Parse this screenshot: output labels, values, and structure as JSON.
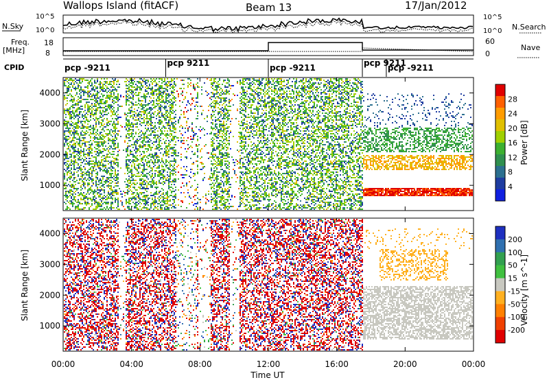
{
  "header": {
    "station": "Wallops Island (fitACF)",
    "beam": "Beam 13",
    "date": "17/Jan/2012"
  },
  "noise_panel": {
    "left_label": "N.Sky",
    "right_label": "N.Search",
    "ticks_left": [
      "10^5",
      "10^0"
    ],
    "ticks_right": [
      "10^5",
      "10^0"
    ]
  },
  "freq_panel": {
    "left_label_line1": "Freq.",
    "left_label_line2": "[MHz]",
    "right_label": "Nave",
    "ticks_left": [
      "18",
      "8"
    ],
    "ticks_right": [
      "60",
      "0"
    ]
  },
  "cpid": {
    "label": "CPID",
    "segments": [
      {
        "label": "pcp -9211",
        "start_hour": 0.0
      },
      {
        "label": "pcp 9211",
        "start_hour": 6.0
      },
      {
        "label": "pcp -9211",
        "start_hour": 12.0
      },
      {
        "label": "pcp 9211",
        "start_hour": 17.5
      },
      {
        "label": "pcp -9211",
        "start_hour": 18.9
      }
    ]
  },
  "x_axis": {
    "label": "Time UT",
    "ticks": [
      "00:00",
      "04:00",
      "08:00",
      "12:00",
      "16:00",
      "20:00",
      "00:00"
    ]
  },
  "chart_data": [
    {
      "type": "heatmap",
      "title": "",
      "xlabel": "Time UT",
      "ylabel": "Slant Range [km]",
      "xlim": [
        0,
        24
      ],
      "ylim": [
        180,
        4500
      ],
      "yticks": [
        1000,
        2000,
        3000,
        4000
      ],
      "colorbar": {
        "label": "Power [dB]",
        "ticks": [
          "28",
          "24",
          "20",
          "16",
          "12",
          "8",
          "4"
        ],
        "colors": [
          "#e00000",
          "#ff6000",
          "#ff9c00",
          "#e0c000",
          "#a0d000",
          "#3cb030",
          "#2f8f4f",
          "#2b6f8f",
          "#1e3ca0",
          "#1020e0"
        ]
      },
      "features": [
        {
          "name": "scatter band",
          "time_start": 17.5,
          "time_end": 24.0,
          "range_km": [
            700,
            900
          ],
          "power_db": 28
        },
        {
          "name": "scatter band",
          "time_start": 17.5,
          "time_end": 23.5,
          "range_km": [
            1500,
            2000
          ],
          "power_db": 20
        },
        {
          "name": "scatter band",
          "time_start": 17.5,
          "time_end": 23.0,
          "range_km": [
            2200,
            2800
          ],
          "power_db": 12
        }
      ]
    },
    {
      "type": "heatmap",
      "title": "",
      "xlabel": "Time UT",
      "ylabel": "Slant Range [km]",
      "xlim": [
        0,
        24
      ],
      "ylim": [
        180,
        4500
      ],
      "yticks": [
        1000,
        2000,
        3000,
        4000
      ],
      "colorbar": {
        "label": "Velocity [m s^-1]",
        "ticks": [
          "200",
          "100",
          "50",
          "15",
          "-15",
          "-50",
          "-100",
          "-200"
        ],
        "colors": [
          "#1e30c0",
          "#2f70b0",
          "#32a050",
          "#40c040",
          "#c8c8c0",
          "#ffb020",
          "#ff8000",
          "#f04000",
          "#e00000"
        ]
      },
      "features": [
        {
          "name": "ground scatter",
          "time_start": 17.5,
          "time_end": 24.0,
          "range_km": [
            600,
            2200
          ],
          "velocity": 0
        },
        {
          "name": "ionospheric scatter",
          "time_start": 18.5,
          "time_end": 22.5,
          "range_km": [
            2500,
            3500
          ],
          "velocity": -50
        }
      ]
    }
  ]
}
